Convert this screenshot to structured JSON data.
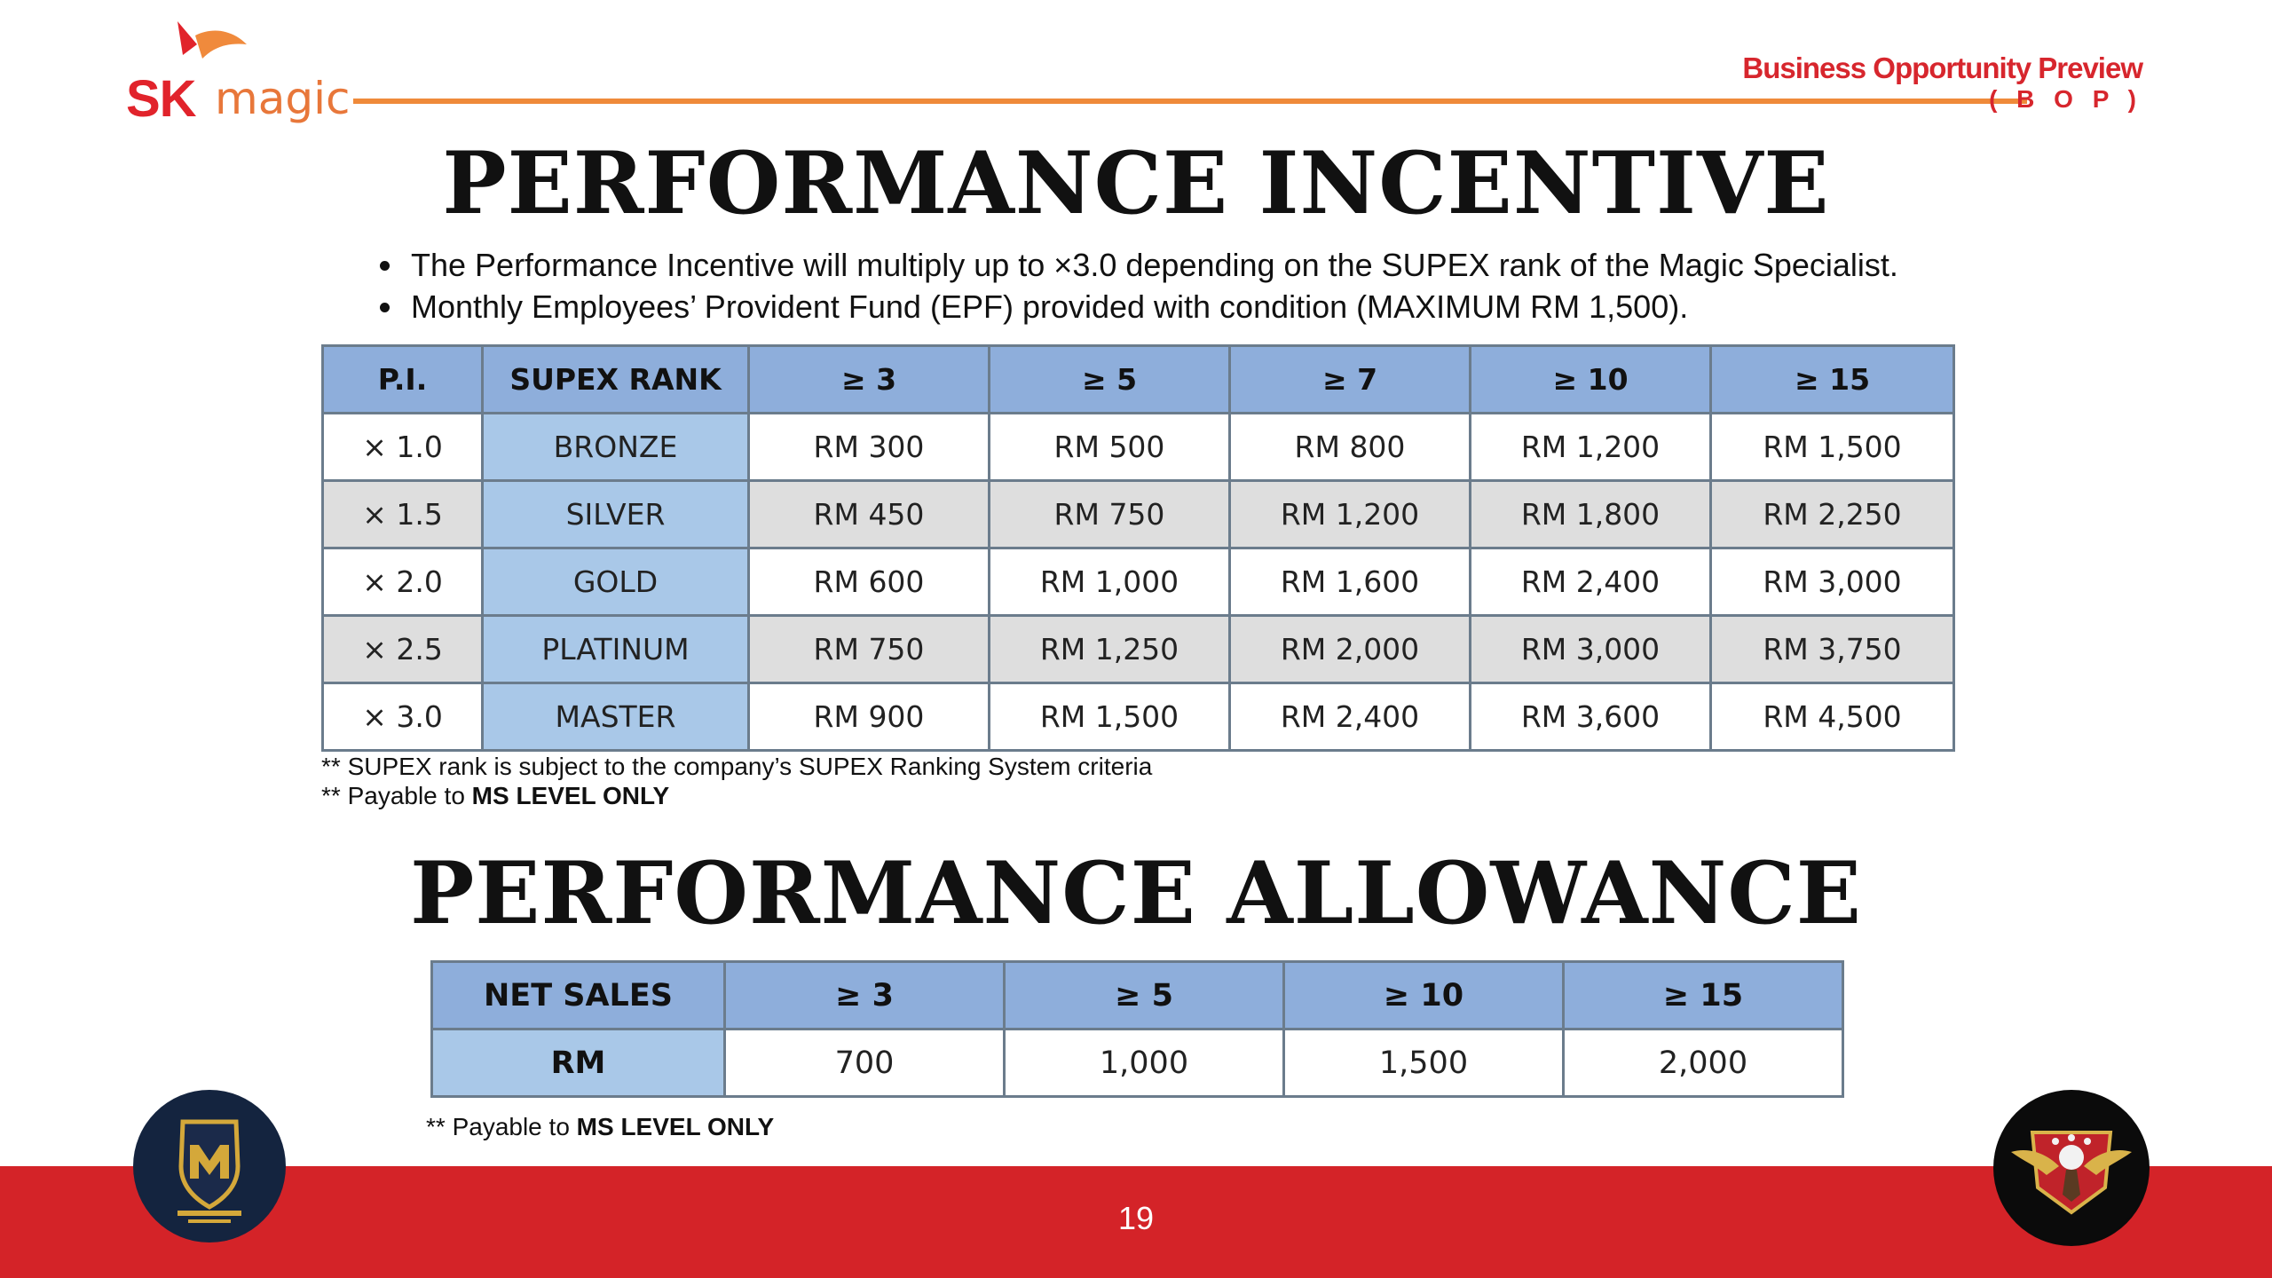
{
  "logo": {
    "sk": "SK",
    "magic": "magic",
    "brand_color": "#e1232b",
    "accent_color": "#e8773a"
  },
  "header": {
    "title": "Business Opportunity Preview",
    "subtitle": "( B O P )"
  },
  "incentive": {
    "title": "PERFORMANCE INCENTIVE",
    "bullets": [
      "The Performance Incentive will multiply up to ×3.0 depending on the SUPEX rank of the Magic Specialist.",
      "Monthly Employees’ Provident Fund (EPF) provided with condition (MAXIMUM RM 1,500)."
    ],
    "table": {
      "headers": [
        "P.I.",
        "SUPEX RANK",
        "≥ 3",
        "≥ 5",
        "≥ 7",
        "≥ 10",
        "≥ 15"
      ],
      "rows": [
        [
          "× 1.0",
          "BRONZE",
          "RM 300",
          "RM 500",
          "RM 800",
          "RM 1,200",
          "RM 1,500"
        ],
        [
          "× 1.5",
          "SILVER",
          "RM 450",
          "RM 750",
          "RM 1,200",
          "RM 1,800",
          "RM 2,250"
        ],
        [
          "× 2.0",
          "GOLD",
          "RM 600",
          "RM 1,000",
          "RM 1,600",
          "RM 2,400",
          "RM 3,000"
        ],
        [
          "× 2.5",
          "PLATINUM",
          "RM 750",
          "RM 1,250",
          "RM 2,000",
          "RM 3,000",
          "RM 3,750"
        ],
        [
          "× 3.0",
          "MASTER",
          "RM 900",
          "RM 1,500",
          "RM 2,400",
          "RM 3,600",
          "RM 4,500"
        ]
      ]
    },
    "note1": "** SUPEX rank is subject to the company’s SUPEX Ranking System criteria",
    "note2_prefix": "** Payable to ",
    "note2_bold": "MS LEVEL ONLY"
  },
  "allowance": {
    "title": "PERFORMANCE ALLOWANCE",
    "table": {
      "headers": [
        "NET SALES",
        "≥ 3",
        "≥ 5",
        "≥ 10",
        "≥ 15"
      ],
      "row_label": "RM",
      "values": [
        "700",
        "1,000",
        "1,500",
        "2,000"
      ]
    },
    "note_prefix": "** Payable to ",
    "note_bold": "MS LEVEL ONLY"
  },
  "footer": {
    "page_number": "19",
    "bar_color": "#d42328"
  },
  "badges": {
    "left": "master-fighters-academy-emblem",
    "right": "eagle-emblem"
  }
}
